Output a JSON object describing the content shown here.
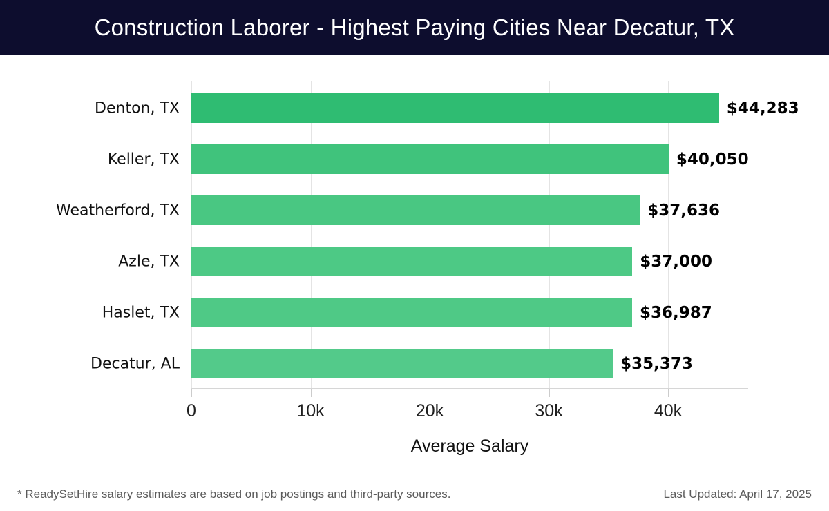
{
  "header": {
    "title": "Construction Laborer - Highest Paying Cities Near Decatur, TX"
  },
  "chart_data": {
    "type": "bar",
    "orientation": "horizontal",
    "title": "Construction Laborer - Highest Paying Cities Near Decatur, TX",
    "categories": [
      "Denton, TX",
      "Keller, TX",
      "Weatherford, TX",
      "Azle, TX",
      "Haslet, TX",
      "Decatur, AL"
    ],
    "values": [
      44283,
      40050,
      37636,
      37000,
      36987,
      35373
    ],
    "value_labels": [
      "$44,283",
      "$40,050",
      "$37,636",
      "$37,000",
      "$36,987",
      "$35,373"
    ],
    "bar_colors": [
      "#2fbc72",
      "#40c37c",
      "#49c782",
      "#4dc985",
      "#4fc986",
      "#53ca8a"
    ],
    "xlabel": "Average Salary",
    "ylabel": "",
    "x_tick_labels": [
      "0",
      "10k",
      "20k",
      "30k",
      "40k"
    ],
    "x_tick_values": [
      0,
      10000,
      20000,
      30000,
      40000
    ],
    "xlim": [
      0,
      46700
    ],
    "grid": true,
    "legend": false
  },
  "footer": {
    "disclaimer": "* ReadySetHire salary estimates are based on job postings and third-party sources.",
    "last_updated": "Last Updated: April 17, 2025"
  },
  "colors": {
    "header_background": "#0d0d2e",
    "title_text": "#ffffff",
    "gridline": "#e4e4e4",
    "axis_line": "#d6d6d6",
    "value_text": "#000000",
    "category_text": "#111111",
    "footer_text": "#5a5a5a"
  }
}
